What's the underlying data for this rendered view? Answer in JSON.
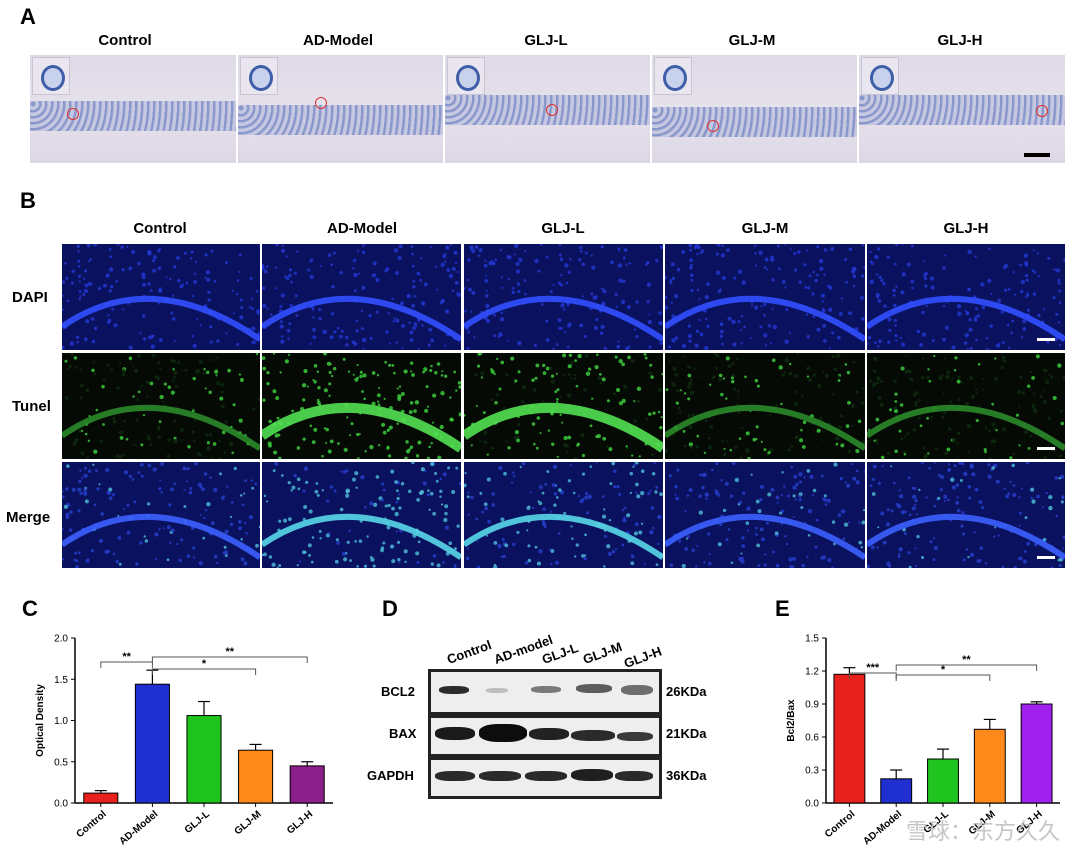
{
  "panels": {
    "a": {
      "letter": "A",
      "titles": [
        "Control",
        "AD-Model",
        "GLJ-L",
        "GLJ-M",
        "GLJ-H"
      ]
    },
    "b": {
      "letter": "B",
      "titles": [
        "Control",
        "AD-Model",
        "GLJ-L",
        "GLJ-M",
        "GLJ-H"
      ],
      "rows": [
        "DAPI",
        "Tunel",
        "Merge"
      ]
    },
    "c": {
      "letter": "C"
    },
    "d": {
      "letter": "D",
      "columns": [
        "Control",
        "AD-model",
        "GLJ-L",
        "GLJ-M",
        "GLJ-H"
      ],
      "rows": [
        "BCL2",
        "BAX",
        "GAPDH"
      ],
      "kda": [
        "26KDa",
        "21KDa",
        "36KDa"
      ]
    },
    "e": {
      "letter": "E"
    }
  },
  "colors": {
    "control": "#e8211d",
    "model": "#1f2fd0",
    "low": "#1fc41f",
    "mid": "#ff8a1a",
    "high": "#8a1f8a",
    "high_e": "#a020f0"
  },
  "chart_data": [
    {
      "type": "bar",
      "categories": [
        "Control",
        "AD-Model",
        "GLJ-L",
        "GLJ-M",
        "GLJ-H"
      ],
      "values": [
        0.12,
        1.44,
        1.06,
        0.64,
        0.45
      ],
      "errors": [
        0.03,
        0.17,
        0.17,
        0.07,
        0.05
      ],
      "ylabel": "Optical Density",
      "ylim": [
        0,
        2.0
      ],
      "yticks": [
        "0.0",
        "0.5",
        "1.0",
        "1.5",
        "2.0"
      ],
      "significance": [
        {
          "from": 0,
          "to": 1,
          "label": "**"
        },
        {
          "from": 1,
          "to": 3,
          "label": "*"
        },
        {
          "from": 1,
          "to": 4,
          "label": "**"
        }
      ]
    },
    {
      "type": "bar",
      "categories": [
        "Control",
        "AD-Model",
        "GLJ-L",
        "GLJ-M",
        "GLJ-H"
      ],
      "values": [
        1.17,
        0.22,
        0.4,
        0.67,
        0.9
      ],
      "errors": [
        0.06,
        0.08,
        0.09,
        0.09,
        0.02
      ],
      "ylabel": "Bcl2/Bax",
      "ylim": [
        0,
        1.5
      ],
      "yticks": [
        "0.0",
        "0.3",
        "0.6",
        "0.9",
        "1.2",
        "1.5"
      ],
      "significance": [
        {
          "from": 0,
          "to": 1,
          "label": "***"
        },
        {
          "from": 1,
          "to": 3,
          "label": "*"
        },
        {
          "from": 1,
          "to": 4,
          "label": "**"
        }
      ]
    }
  ],
  "watermark": "雪球：东方久久"
}
